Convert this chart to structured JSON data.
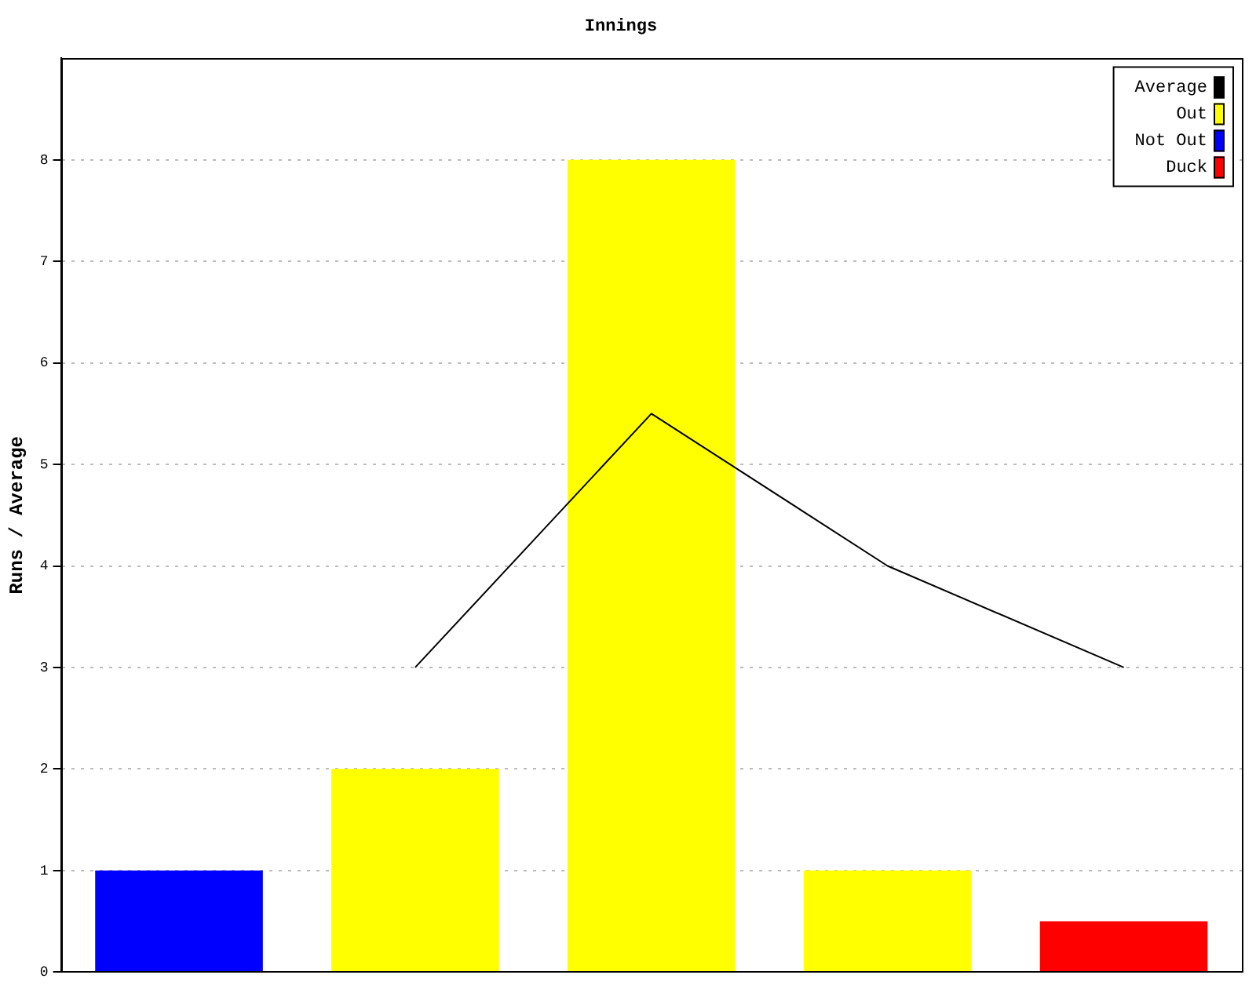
{
  "chart_data": {
    "type": "bar",
    "title": "Innings",
    "ylabel": "Runs / Average",
    "categories": [
      null,
      null,
      null,
      null,
      null
    ],
    "stacked": true,
    "ylim": [
      0,
      9
    ],
    "yticks": [
      0,
      1,
      2,
      3,
      4,
      5,
      6,
      7,
      8
    ],
    "grid": "y",
    "legend": "top right",
    "series": [
      {
        "name": "Average",
        "type": "line",
        "color": "#000000",
        "marker": "none",
        "values": [
          null,
          3,
          5.5,
          4,
          3
        ]
      },
      {
        "name": "Out",
        "color": "#ffff00",
        "values": [
          null,
          2,
          8,
          1,
          null
        ]
      },
      {
        "name": "Not Out",
        "color": "#0000ff",
        "values": [
          1,
          null,
          null,
          null,
          null
        ]
      },
      {
        "name": "Duck",
        "color": "#ff0000",
        "values": [
          null,
          null,
          null,
          null,
          0.5
        ]
      }
    ]
  }
}
